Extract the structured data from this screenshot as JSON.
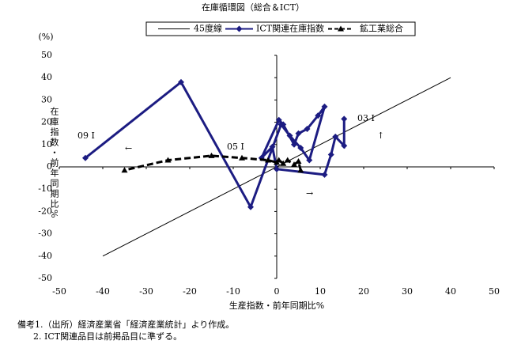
{
  "chart_data": {
    "type": "line",
    "title": "在庫循環図（総合＆ICT）",
    "y_unit_label": "(%)",
    "ylabel": "在庫指数・前年同期比%",
    "xlabel": "生産指数・前年同期比%",
    "xlim": [
      -50,
      50
    ],
    "ylim": [
      -50,
      50
    ],
    "xticks": [
      -50,
      -40,
      -30,
      -20,
      -10,
      0,
      10,
      20,
      30,
      40,
      50
    ],
    "yticks": [
      -50,
      -40,
      -30,
      -20,
      -10,
      0,
      10,
      20,
      30,
      40,
      50
    ],
    "grid": false,
    "series": [
      {
        "name": "45度線",
        "color": "#000000",
        "marker": "none",
        "dash": false,
        "width": 1,
        "x": [
          -40,
          40
        ],
        "values": [
          -40,
          40
        ]
      },
      {
        "name": "ICT関連在庫指数",
        "color": "#1c1c82",
        "marker": "diamond",
        "dash": false,
        "width": 3,
        "x": [
          15.5,
          15.5,
          13.5,
          12.5,
          11,
          0,
          -1,
          -3.5,
          0.5,
          1.5,
          4,
          5,
          7,
          9.5,
          11,
          7.5,
          5.5,
          3,
          1,
          -6,
          -22,
          -44
        ],
        "values": [
          21.5,
          9.5,
          13.5,
          5.5,
          -3.5,
          -1,
          9,
          4,
          21,
          19,
          10,
          15,
          17,
          23,
          27,
          3,
          8.5,
          14,
          19,
          -18,
          38,
          4
        ]
      },
      {
        "name": "鉱工業総合",
        "color": "#000000",
        "marker": "triangle",
        "dash": true,
        "width": 3,
        "x": [
          5.5,
          5,
          4,
          2.5,
          1.5,
          0.5,
          0,
          -2,
          -8,
          -15,
          -25,
          -35
        ],
        "values": [
          -1.5,
          2.5,
          1,
          3,
          1.5,
          3,
          2,
          3,
          4,
          5,
          3,
          -1.5
        ]
      }
    ],
    "annotations": [
      "09 I",
      "05 I",
      "03 I",
      "←",
      "↑",
      "→"
    ],
    "notes": [
      "備考1.（出所）経済産業省「経済産業統計」より作成。",
      "2. ICT関連品目は前掲品目に準ずる。"
    ]
  }
}
